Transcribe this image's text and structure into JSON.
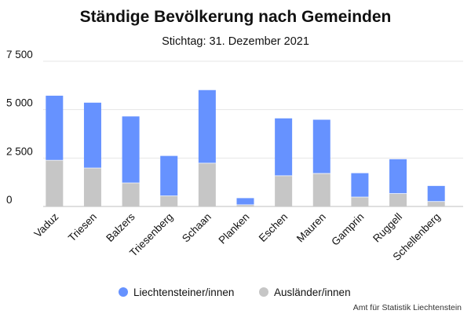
{
  "chart_data": {
    "type": "bar",
    "stacked": true,
    "title": "Ständige Bevölkerung nach Gemeinden",
    "subtitle": "Stichtag: 31. Dezember 2021",
    "categories": [
      "Vaduz",
      "Triesen",
      "Balzers",
      "Triesenberg",
      "Schaan",
      "Planken",
      "Eschen",
      "Mauren",
      "Gamprin",
      "Ruggell",
      "Schellenberg"
    ],
    "series": [
      {
        "name": "Ausländer/innen",
        "color": "#c6c6c6",
        "values": [
          2400,
          2000,
          1230,
          560,
          2250,
          100,
          1600,
          1720,
          500,
          680,
          270
        ]
      },
      {
        "name": "Liechtensteiner/innen",
        "color": "#6692ff",
        "values": [
          3320,
          3360,
          3420,
          2050,
          3760,
          330,
          2950,
          2760,
          1220,
          1760,
          790
        ]
      }
    ],
    "yticks": [
      "0",
      "2 500",
      "5 000",
      "7 500"
    ],
    "ylim": [
      0,
      7500
    ],
    "grid": true,
    "legend_position": "bottom",
    "legend": [
      {
        "label": "Liechtensteiner/innen",
        "color": "#6692ff"
      },
      {
        "label": "Ausländer/innen",
        "color": "#c6c6c6"
      }
    ],
    "source": "Amt für Statistik Liechtenstein"
  }
}
